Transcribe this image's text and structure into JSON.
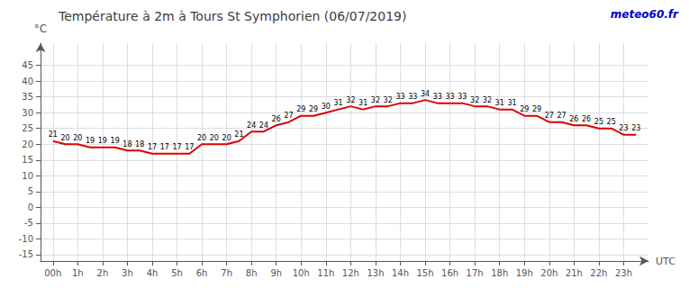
{
  "chart_data": {
    "type": "line",
    "title": "Température à 2m à Tours St Symphorien (06/07/2019)",
    "ylabel": "°C",
    "xlabel": "UTC",
    "annotations": [
      "meteo60.fr"
    ],
    "x": [
      0,
      0.5,
      1,
      1.5,
      2,
      2.5,
      3,
      3.5,
      4,
      4.5,
      5,
      5.5,
      6,
      6.5,
      7,
      7.5,
      8,
      8.5,
      9,
      9.5,
      10,
      10.5,
      11,
      11.5,
      12,
      12.5,
      13,
      13.5,
      14,
      14.5,
      15,
      15.5,
      16,
      16.5,
      17,
      17.5,
      18,
      18.5,
      19,
      19.5,
      20,
      20.5,
      21,
      21.5,
      22,
      22.5,
      23,
      23.5
    ],
    "values": [
      21,
      20,
      20,
      19,
      19,
      19,
      18,
      18,
      17,
      17,
      17,
      17,
      20,
      20,
      20,
      21,
      24,
      24,
      26,
      27,
      29,
      29,
      30,
      31,
      32,
      31,
      32,
      32,
      33,
      33,
      34,
      33,
      33,
      33,
      32,
      32,
      31,
      31,
      29,
      29,
      27,
      27,
      26,
      26,
      25,
      25,
      23,
      23
    ],
    "color": "#dd0000",
    "xlim": [
      -0.5,
      24
    ],
    "xticks": [
      {
        "value": 0,
        "label": "00h"
      },
      {
        "value": 1,
        "label": "1h"
      },
      {
        "value": 2,
        "label": "2h"
      },
      {
        "value": 3,
        "label": "3h"
      },
      {
        "value": 4,
        "label": "4h"
      },
      {
        "value": 5,
        "label": "5h"
      },
      {
        "value": 6,
        "label": "6h"
      },
      {
        "value": 7,
        "label": "7h"
      },
      {
        "value": 8,
        "label": "8h"
      },
      {
        "value": 9,
        "label": "9h"
      },
      {
        "value": 10,
        "label": "10h"
      },
      {
        "value": 11,
        "label": "11h"
      },
      {
        "value": 12,
        "label": "12h"
      },
      {
        "value": 13,
        "label": "13h"
      },
      {
        "value": 14,
        "label": "14h"
      },
      {
        "value": 15,
        "label": "15h"
      },
      {
        "value": 16,
        "label": "16h"
      },
      {
        "value": 17,
        "label": "17h"
      },
      {
        "value": 18,
        "label": "18h"
      },
      {
        "value": 19,
        "label": "19h"
      },
      {
        "value": 20,
        "label": "20h"
      },
      {
        "value": 21,
        "label": "21h"
      },
      {
        "value": 22,
        "label": "22h"
      },
      {
        "value": 23,
        "label": "23h"
      }
    ],
    "ylim": [
      -17,
      52
    ],
    "yticks": [
      -15,
      -10,
      -5,
      0,
      5,
      10,
      15,
      20,
      25,
      30,
      35,
      40,
      45
    ],
    "grid": true,
    "data_labels": true
  }
}
